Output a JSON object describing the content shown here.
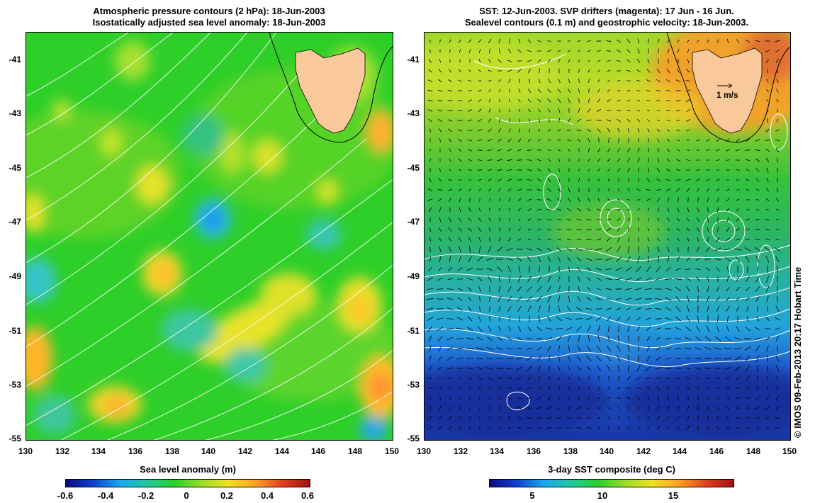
{
  "left_panel": {
    "title_line1": "Atmospheric pressure contours (2 hPa): 18-Jun-2003",
    "title_line2": "Isostatically adjusted sea level anomaly: 18-Jun-2003",
    "colorbar_title": "Sea level anomaly (m)",
    "colorbar_ticks": [
      "-0.6",
      "-0.4",
      "-0.2",
      "0",
      "0.2",
      "0.4",
      "0.6"
    ]
  },
  "right_panel": {
    "title_line1": "SST: 12-Jun-2003. SVP drifters (magenta): 17 Jun - 16 Jun.",
    "title_line2": "Sealevel contours (0.1 m) and geostrophic velocity: 18-Jun-2003.",
    "colorbar_title": "3-day SST composite (deg C)",
    "colorbar_ticks": [
      "5",
      "10",
      "15"
    ],
    "velocity_scale_label": "1 m/s"
  },
  "lat_ticks": [
    "-41",
    "-43",
    "-45",
    "-47",
    "-49",
    "-51",
    "-53",
    "-55"
  ],
  "lon_ticks": [
    "130",
    "132",
    "134",
    "136",
    "138",
    "140",
    "142",
    "144",
    "146",
    "148",
    "150"
  ],
  "credit": "© IMOS 09-Feb-2013 20:17 Hobart Time",
  "colors": {
    "land": "#f9c99b",
    "sla_background": "#2ed12a",
    "sst_warm": "#f0a22a",
    "sst_cold": "#1f3fb0"
  }
}
